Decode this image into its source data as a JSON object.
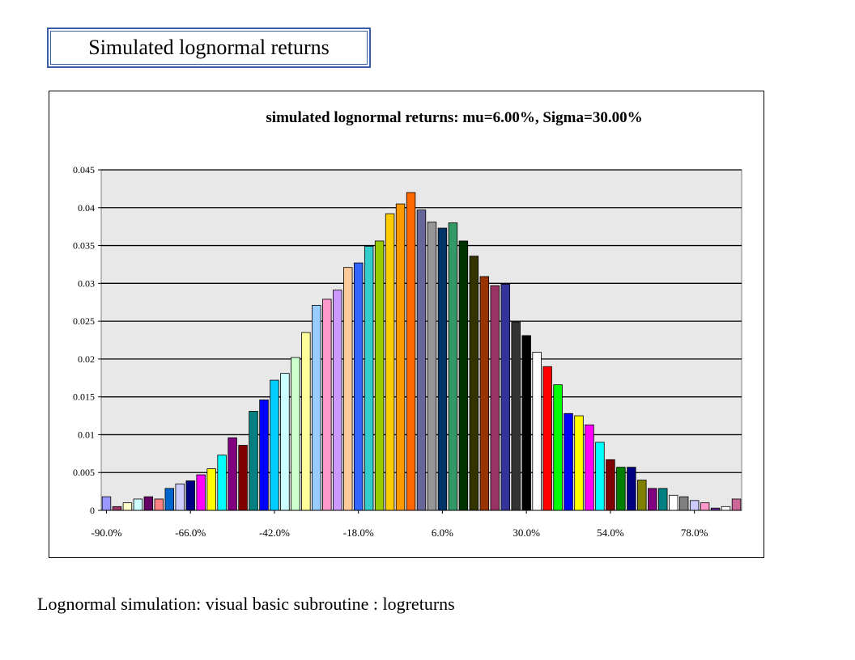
{
  "slide_title": "Simulated lognormal returns",
  "caption": "Lognormal simulation: visual basic subroutine : logreturns",
  "chart_data": {
    "type": "bar",
    "title": "simulated lognormal returns: mu=6.00%, Sigma=30.00%",
    "xlabel": "",
    "ylabel": "",
    "ylim": [
      0,
      0.045
    ],
    "yticks": [
      0,
      0.005,
      0.01,
      0.015,
      0.02,
      0.025,
      0.03,
      0.035,
      0.04,
      0.045
    ],
    "ytick_labels": [
      "0",
      "0.005",
      "0.01",
      "0.015",
      "0.02",
      "0.025",
      "0.03",
      "0.035",
      "0.04",
      "0.045"
    ],
    "x_start": -90.0,
    "x_step": 3.0,
    "xtick_labels": [
      "-90.0%",
      "-66.0%",
      "-42.0%",
      "-18.0%",
      "6.0%",
      "30.0%",
      "54.0%",
      "78.0%"
    ],
    "grid": true,
    "legend": "none",
    "values": [
      0.0018,
      0.0005,
      0.001,
      0.0015,
      0.0018,
      0.0015,
      0.0029,
      0.0035,
      0.0039,
      0.0047,
      0.0055,
      0.0073,
      0.0096,
      0.0086,
      0.0131,
      0.0146,
      0.0172,
      0.0181,
      0.0202,
      0.0235,
      0.0271,
      0.0279,
      0.0291,
      0.0321,
      0.0327,
      0.0349,
      0.0356,
      0.0392,
      0.0405,
      0.042,
      0.0397,
      0.0381,
      0.0373,
      0.038,
      0.0356,
      0.0336,
      0.0309,
      0.0297,
      0.0299,
      0.0249,
      0.0231,
      0.0209,
      0.019,
      0.0166,
      0.0128,
      0.0125,
      0.0113,
      0.009,
      0.0067,
      0.0057,
      0.0057,
      0.004,
      0.0029,
      0.0029,
      0.002,
      0.0018,
      0.0013,
      0.001,
      0.0003,
      0.0005,
      0.0015
    ],
    "colors": [
      "#9999ff",
      "#993366",
      "#ffffcc",
      "#ccffff",
      "#660066",
      "#ff8080",
      "#0066cc",
      "#ccccff",
      "#000080",
      "#ff00ff",
      "#ffff00",
      "#00ffff",
      "#800080",
      "#800000",
      "#008080",
      "#0000ff",
      "#00ccff",
      "#ccffff",
      "#ccffcc",
      "#ffff99",
      "#99ccff",
      "#ff99cc",
      "#cc99ff",
      "#ffcc99",
      "#3366ff",
      "#33cccc",
      "#99cc00",
      "#ffcc00",
      "#ff9900",
      "#ff6600",
      "#666699",
      "#969696",
      "#003366",
      "#339966",
      "#003300",
      "#333300",
      "#993300",
      "#993366",
      "#333399",
      "#333333",
      "#000000",
      "#ffffff",
      "#ff0000",
      "#00ff00",
      "#0000ff",
      "#ffff00",
      "#ff00ff",
      "#00ffff",
      "#800000",
      "#008000",
      "#000080",
      "#808000",
      "#800080",
      "#008080",
      "#ffffff",
      "#808080",
      "#ccccff",
      "#ff99cc",
      "#663399",
      "#ffffff",
      "#cc6699"
    ]
  }
}
